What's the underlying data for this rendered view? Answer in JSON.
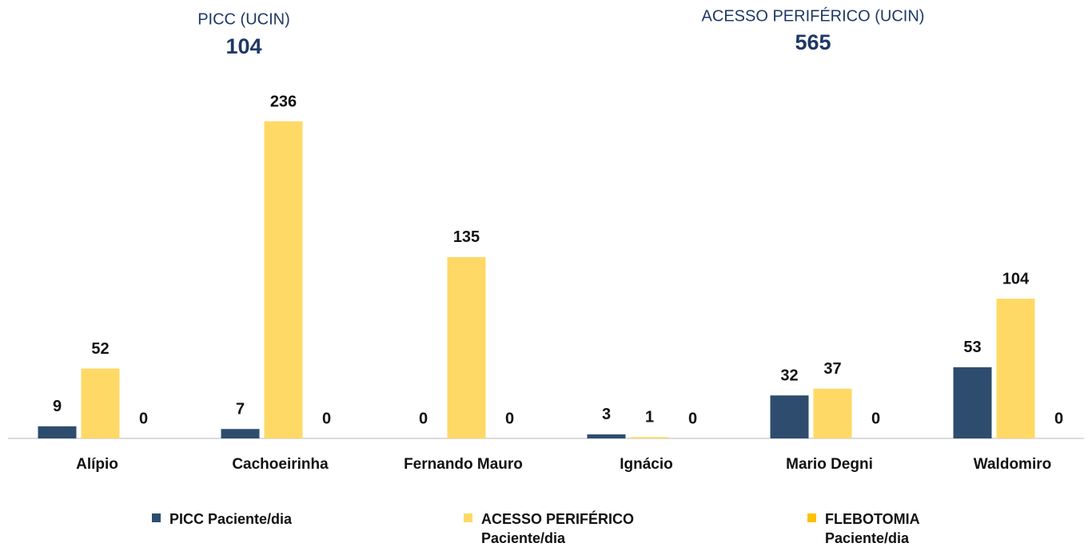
{
  "kpis": [
    {
      "label": "PICC (UCIN)",
      "value": 104
    },
    {
      "label": "ACESSO PERIFÉRICO (UCIN)",
      "value": 565
    }
  ],
  "chart_data": {
    "type": "bar",
    "categories": [
      "Alípio",
      "Cachoeirinha",
      "Fernando Mauro",
      "Ignácio",
      "Mario Degni",
      "Waldomiro"
    ],
    "series": [
      {
        "name": "PICC Paciente/dia",
        "color": "#2e4d6e",
        "values": [
          9,
          7,
          0,
          3,
          32,
          53
        ]
      },
      {
        "name": "ACESSO PERIFÉRICO Paciente/dia",
        "color": "#ffd966",
        "values": [
          52,
          236,
          135,
          1,
          37,
          104
        ]
      },
      {
        "name": "FLEBOTOMIA Paciente/dia",
        "color": "#ffc000",
        "values": [
          0,
          0,
          0,
          0,
          0,
          0
        ]
      }
    ]
  }
}
